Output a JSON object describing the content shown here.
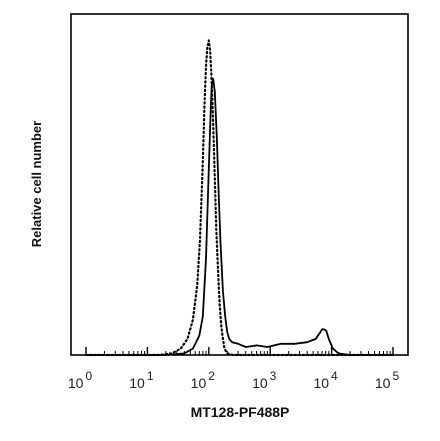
{
  "chart_data": {
    "type": "line",
    "xlabel": "MT128-PF488P",
    "ylabel": "Relative cell number",
    "x_scale": "log",
    "xlim": [
      1,
      100000
    ],
    "ylim": [
      0,
      1
    ],
    "grid": false,
    "x_ticks": [
      {
        "base": "10",
        "exp": "0",
        "value": 1
      },
      {
        "base": "10",
        "exp": "1",
        "value": 10
      },
      {
        "base": "10",
        "exp": "2",
        "value": 100
      },
      {
        "base": "10",
        "exp": "3",
        "value": 1000
      },
      {
        "base": "10",
        "exp": "4",
        "value": 10000
      },
      {
        "base": "10",
        "exp": "5",
        "value": 100000
      }
    ],
    "series": [
      {
        "style": "solid",
        "color": "#000000",
        "x": [
          1,
          20,
          40,
          55,
          70,
          80,
          90,
          100,
          108,
          112,
          118,
          125,
          135,
          145,
          155,
          170,
          185,
          200,
          215,
          240,
          300,
          400,
          600,
          900,
          1500,
          2500,
          4000,
          5500,
          6500,
          7000,
          7500,
          8200,
          9000,
          10500,
          13000,
          20000,
          100000
        ],
        "y": [
          0,
          0,
          0.005,
          0.02,
          0.06,
          0.12,
          0.3,
          0.58,
          0.78,
          0.84,
          0.86,
          0.82,
          0.68,
          0.5,
          0.35,
          0.2,
          0.12,
          0.07,
          0.05,
          0.04,
          0.035,
          0.025,
          0.03,
          0.025,
          0.035,
          0.035,
          0.04,
          0.05,
          0.07,
          0.08,
          0.08,
          0.075,
          0.05,
          0.02,
          0.005,
          0,
          0
        ]
      },
      {
        "style": "dotted",
        "color": "#000000",
        "x": [
          1,
          15,
          25,
          35,
          45,
          55,
          65,
          72,
          80,
          85,
          90,
          95,
          100,
          105,
          110,
          118,
          125,
          132,
          140,
          150,
          160,
          170,
          180,
          200,
          250,
          100000
        ],
        "y": [
          0,
          0,
          0.005,
          0.02,
          0.05,
          0.11,
          0.22,
          0.36,
          0.6,
          0.78,
          0.9,
          0.96,
          0.98,
          0.95,
          0.88,
          0.72,
          0.55,
          0.4,
          0.28,
          0.16,
          0.09,
          0.05,
          0.02,
          0.005,
          0,
          0
        ]
      }
    ]
  }
}
